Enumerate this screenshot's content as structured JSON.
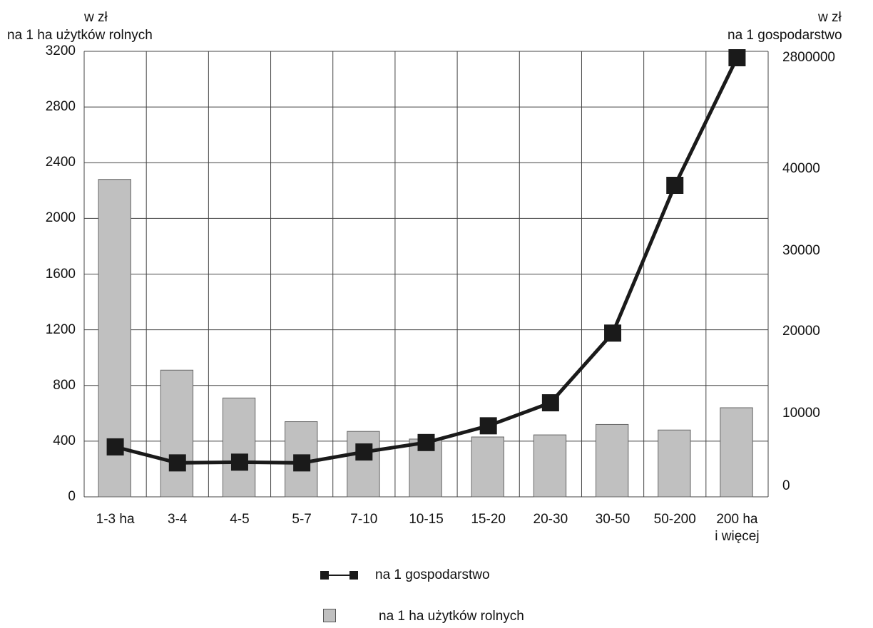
{
  "chart_data": {
    "type": "bar",
    "title": "",
    "left_axis": {
      "label_line1": "w zł",
      "label_line2": "na 1 ha użytków rolnych",
      "ylim": [
        0,
        3200
      ],
      "ticks": [
        "0",
        "400",
        "800",
        "1200",
        "1600",
        "2000",
        "2400",
        "2800",
        "3200"
      ]
    },
    "right_axis": {
      "label_line1": "w zł",
      "label_line2": "na 1 gospodarstwo",
      "ticks": [
        "0",
        "10000",
        "20000",
        "30000",
        "40000",
        "2800000"
      ]
    },
    "categories": [
      "1-3 ha",
      "3-4",
      "4-5",
      "5-7",
      "7-10",
      "10-15",
      "15-20",
      "20-30",
      "30-50",
      "50-200",
      "200 ha i więcej"
    ],
    "category_labels": [
      [
        "1-3 ha"
      ],
      [
        "3-4"
      ],
      [
        "4-5"
      ],
      [
        "5-7"
      ],
      [
        "7-10"
      ],
      [
        "10-15"
      ],
      [
        "15-20"
      ],
      [
        "20-30"
      ],
      [
        "30-50"
      ],
      [
        "50-200"
      ],
      [
        "200 ha",
        "i więcej"
      ]
    ],
    "grid": true,
    "series": [
      {
        "name": "na 1 ha użytków rolnych",
        "type": "bar",
        "axis": "left",
        "color": "#c0c0c0",
        "values": [
          2280,
          910,
          710,
          540,
          470,
          415,
          430,
          445,
          520,
          480,
          640
        ]
      },
      {
        "name": "na 1 gospodarstwo",
        "type": "line",
        "axis": "right",
        "color": "#1a1a1a",
        "values": [
          5400,
          3200,
          3300,
          3200,
          4700,
          6000,
          8300,
          11300,
          19800,
          38000,
          2800000
        ]
      }
    ],
    "legend_position": "bottom"
  }
}
